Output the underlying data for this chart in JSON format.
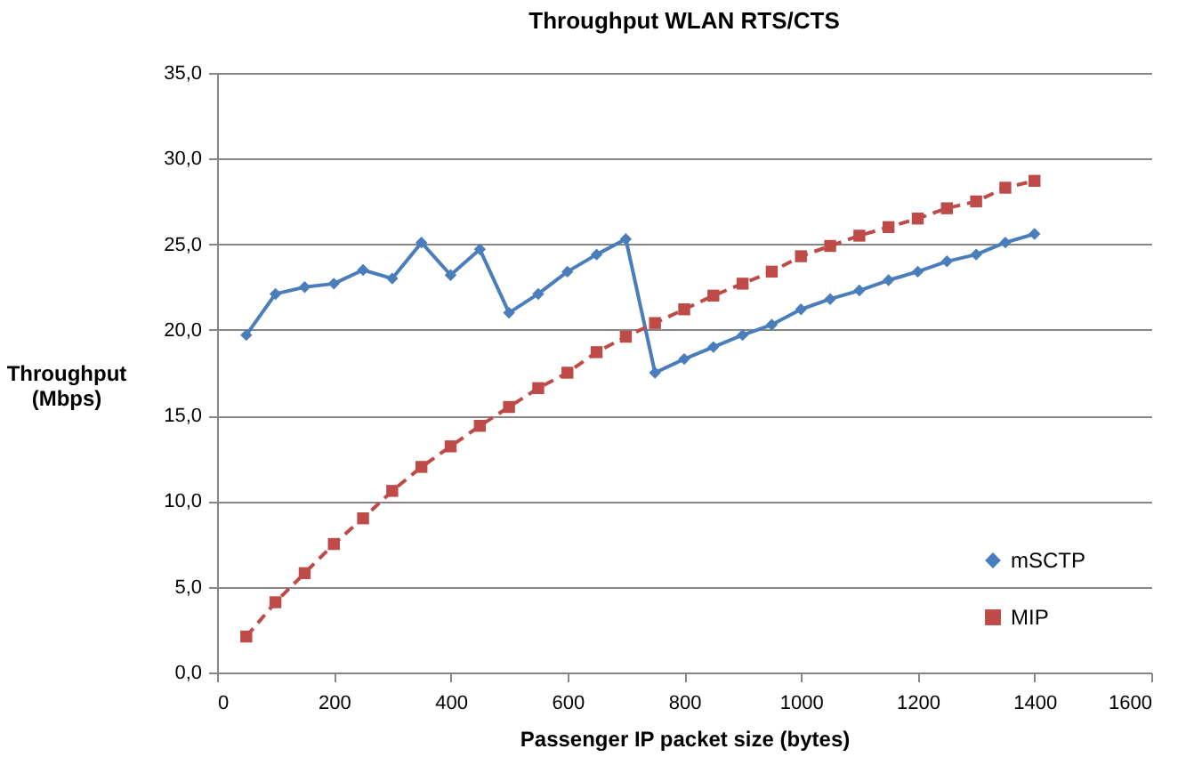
{
  "chart_data": {
    "type": "line",
    "title": "Throughput WLAN RTS/CTS",
    "xlabel": "Passenger IP packet size (bytes)",
    "ylabel": "Throughput (Mbps)",
    "x": [
      50,
      100,
      150,
      200,
      250,
      300,
      350,
      400,
      450,
      500,
      550,
      600,
      650,
      700,
      750,
      800,
      850,
      900,
      950,
      1000,
      1050,
      1100,
      1150,
      1200,
      1250,
      1300,
      1350,
      1400
    ],
    "series": [
      {
        "name": "mSCTP",
        "color": "#4a7ebb",
        "marker": "diamond",
        "line_style": "solid",
        "values": [
          19.7,
          22.1,
          22.5,
          22.7,
          23.5,
          23.0,
          25.1,
          23.2,
          24.7,
          21.0,
          22.1,
          23.4,
          24.4,
          25.3,
          17.5,
          18.3,
          19.0,
          19.7,
          20.3,
          21.2,
          21.8,
          22.3,
          22.9,
          23.4,
          24.0,
          24.4,
          25.1,
          25.6
        ]
      },
      {
        "name": "MIP",
        "color": "#be4b48",
        "marker": "square",
        "line_style": "dashed",
        "values": [
          2.1,
          4.1,
          5.8,
          7.5,
          9.0,
          10.6,
          12.0,
          13.2,
          14.4,
          15.5,
          16.6,
          17.5,
          18.7,
          19.6,
          20.4,
          21.2,
          22.0,
          22.7,
          23.4,
          24.3,
          24.9,
          25.5,
          26.0,
          26.5,
          27.1,
          27.5,
          28.3,
          28.7
        ]
      }
    ],
    "xlim": [
      0,
      1600
    ],
    "xticks": [
      0,
      200,
      400,
      600,
      800,
      1000,
      1200,
      1400,
      1600
    ],
    "ylim": [
      0,
      35
    ],
    "yticks": [
      {
        "value": 0,
        "label": "0,0"
      },
      {
        "value": 5,
        "label": "5,0"
      },
      {
        "value": 10,
        "label": "10,0"
      },
      {
        "value": 15,
        "label": "15,0"
      },
      {
        "value": 20,
        "label": "20,0"
      },
      {
        "value": 25,
        "label": "25,0"
      },
      {
        "value": 30,
        "label": "30,0"
      },
      {
        "value": 35,
        "label": "35,0"
      }
    ],
    "grid": "y",
    "legend": "bottom right"
  }
}
